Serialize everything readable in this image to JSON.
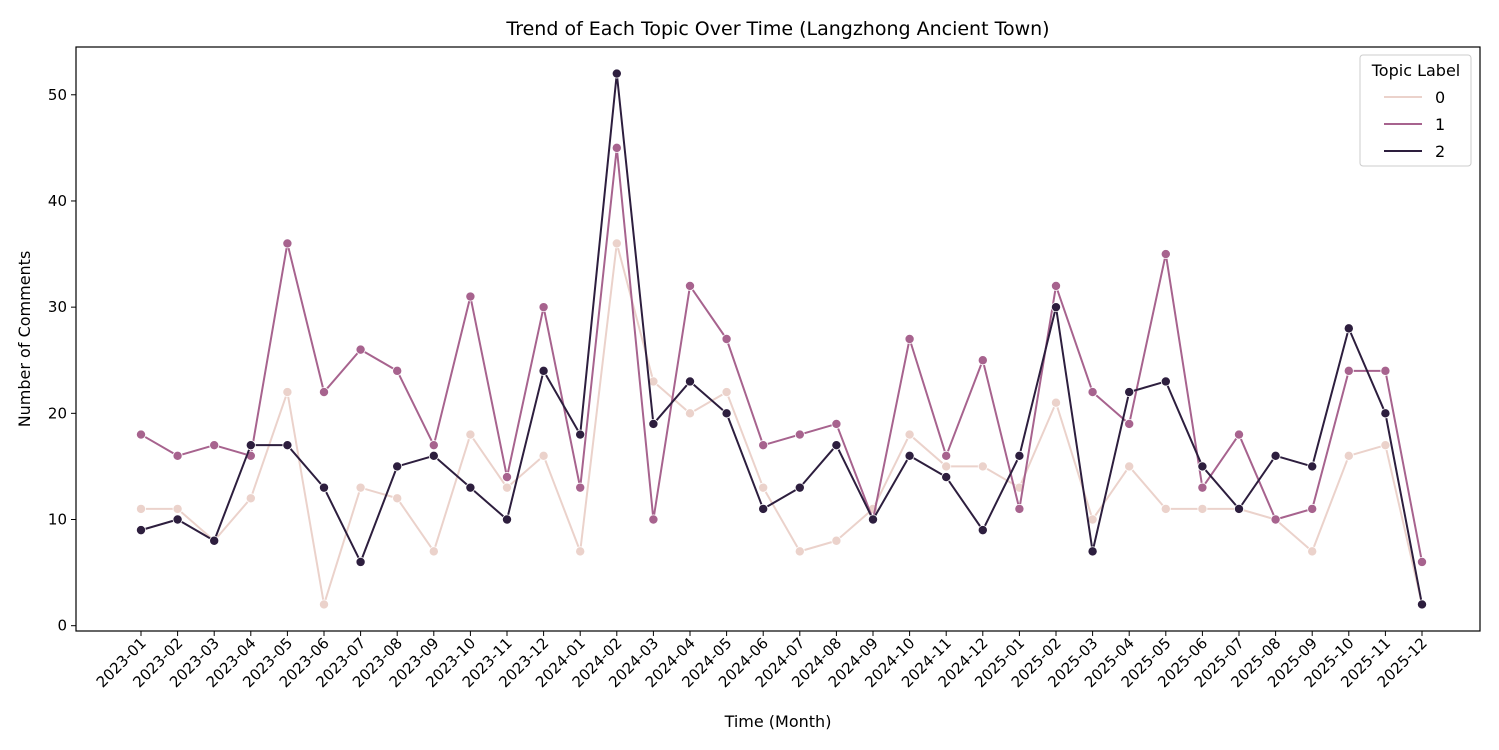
{
  "chart_data": {
    "type": "line",
    "title": "Trend of Each Topic Over Time (Langzhong Ancient Town)",
    "xlabel": "Time (Month)",
    "ylabel": "Number of Comments",
    "ylim": [
      -0.5,
      54.5
    ],
    "yticks": [
      0,
      10,
      20,
      30,
      40,
      50
    ],
    "grid": false,
    "legend": {
      "title": "Topic Label",
      "placement": "top-right"
    },
    "categories": [
      "2023-01",
      "2023-02",
      "2023-03",
      "2023-04",
      "2023-05",
      "2023-06",
      "2023-07",
      "2023-08",
      "2023-09",
      "2023-10",
      "2023-11",
      "2023-12",
      "2024-01",
      "2024-02",
      "2024-03",
      "2024-04",
      "2024-05",
      "2024-06",
      "2024-07",
      "2024-08",
      "2024-09",
      "2024-10",
      "2024-11",
      "2024-12",
      "2025-01",
      "2025-02",
      "2025-03",
      "2025-04",
      "2025-05",
      "2025-06",
      "2025-07",
      "2025-08",
      "2025-09",
      "2025-10",
      "2025-11",
      "2025-12"
    ],
    "series": [
      {
        "name": "0",
        "color": "#ebd2cb",
        "values": [
          11,
          11,
          8,
          12,
          22,
          2,
          13,
          12,
          7,
          18,
          13,
          16,
          7,
          36,
          23,
          20,
          22,
          13,
          7,
          8,
          11,
          18,
          15,
          15,
          13,
          21,
          10,
          15,
          11,
          11,
          11,
          10,
          7,
          16,
          17,
          2
        ]
      },
      {
        "name": "1",
        "color": "#a7638e",
        "values": [
          18,
          16,
          17,
          16,
          36,
          22,
          26,
          24,
          17,
          31,
          14,
          30,
          13,
          45,
          10,
          32,
          27,
          17,
          18,
          19,
          10,
          27,
          16,
          25,
          11,
          32,
          22,
          19,
          35,
          13,
          18,
          10,
          11,
          24,
          24,
          6
        ]
      },
      {
        "name": "2",
        "color": "#2d1e3e",
        "values": [
          9,
          10,
          8,
          17,
          17,
          13,
          6,
          15,
          16,
          13,
          10,
          24,
          18,
          52,
          19,
          23,
          20,
          11,
          13,
          17,
          10,
          16,
          14,
          9,
          16,
          30,
          7,
          22,
          23,
          15,
          11,
          16,
          15,
          28,
          20,
          2
        ]
      }
    ]
  }
}
